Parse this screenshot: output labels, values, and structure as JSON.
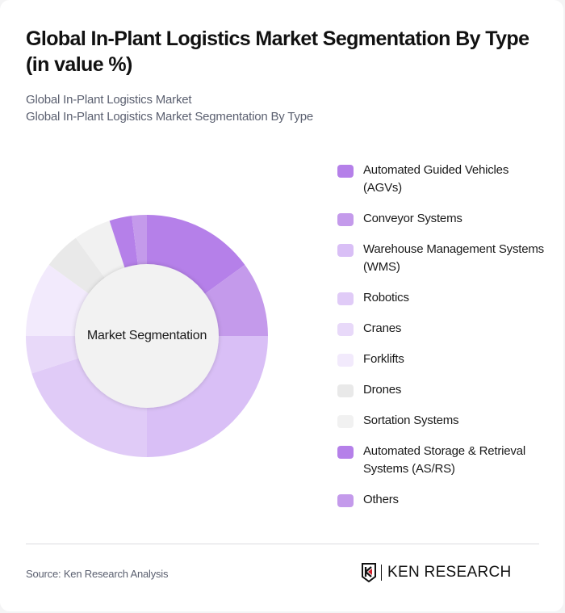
{
  "header": {
    "title": "Global In-Plant Logistics Market Segmentation By Type (in value %)",
    "subtitle_line1": "Global In-Plant Logistics Market",
    "subtitle_line2": "Global In-Plant Logistics Market Segmentation By Type"
  },
  "chart": {
    "center_label": "Market Segmentation"
  },
  "legend": {
    "items": [
      {
        "label": "Automated Guided Vehicles (AGVs)",
        "color": "#b580e9"
      },
      {
        "label": "Conveyor Systems",
        "color": "#c49aeb"
      },
      {
        "label": "Warehouse Management Systems (WMS)",
        "color": "#d9bff6"
      },
      {
        "label": "Robotics",
        "color": "#e0cbf7"
      },
      {
        "label": "Cranes",
        "color": "#e8d9f9"
      },
      {
        "label": "Forklifts",
        "color": "#f2eafc"
      },
      {
        "label": "Drones",
        "color": "#e9e9e9"
      },
      {
        "label": "Sortation Systems",
        "color": "#f1f1f1"
      },
      {
        "label": "Automated Storage & Retrieval Systems (AS/RS)",
        "color": "#b580e9"
      },
      {
        "label": "Others",
        "color": "#c49aeb"
      }
    ]
  },
  "footer": {
    "source": "Source: Ken Research Analysis",
    "logo_text": "KEN RESEARCH"
  },
  "chart_data": {
    "type": "pie",
    "variant": "donut",
    "title": "Global In-Plant Logistics Market Segmentation By Type (in value %)",
    "center_label": "Market Segmentation",
    "categories": [
      "Automated Guided Vehicles (AGVs)",
      "Conveyor Systems",
      "Warehouse Management Systems (WMS)",
      "Robotics",
      "Cranes",
      "Forklifts",
      "Drones",
      "Sortation Systems",
      "Automated Storage & Retrieval Systems (AS/RS)",
      "Others"
    ],
    "values": [
      15,
      10,
      25,
      20,
      5,
      10,
      5,
      5,
      3,
      2
    ],
    "colors": [
      "#b580e9",
      "#c49aeb",
      "#d9bff6",
      "#e0cbf7",
      "#e8d9f9",
      "#f2eafc",
      "#e9e9e9",
      "#f1f1f1",
      "#b580e9",
      "#c49aeb"
    ],
    "start_angle": "12 o'clock, clockwise",
    "legend_position": "right",
    "unit": "%"
  }
}
